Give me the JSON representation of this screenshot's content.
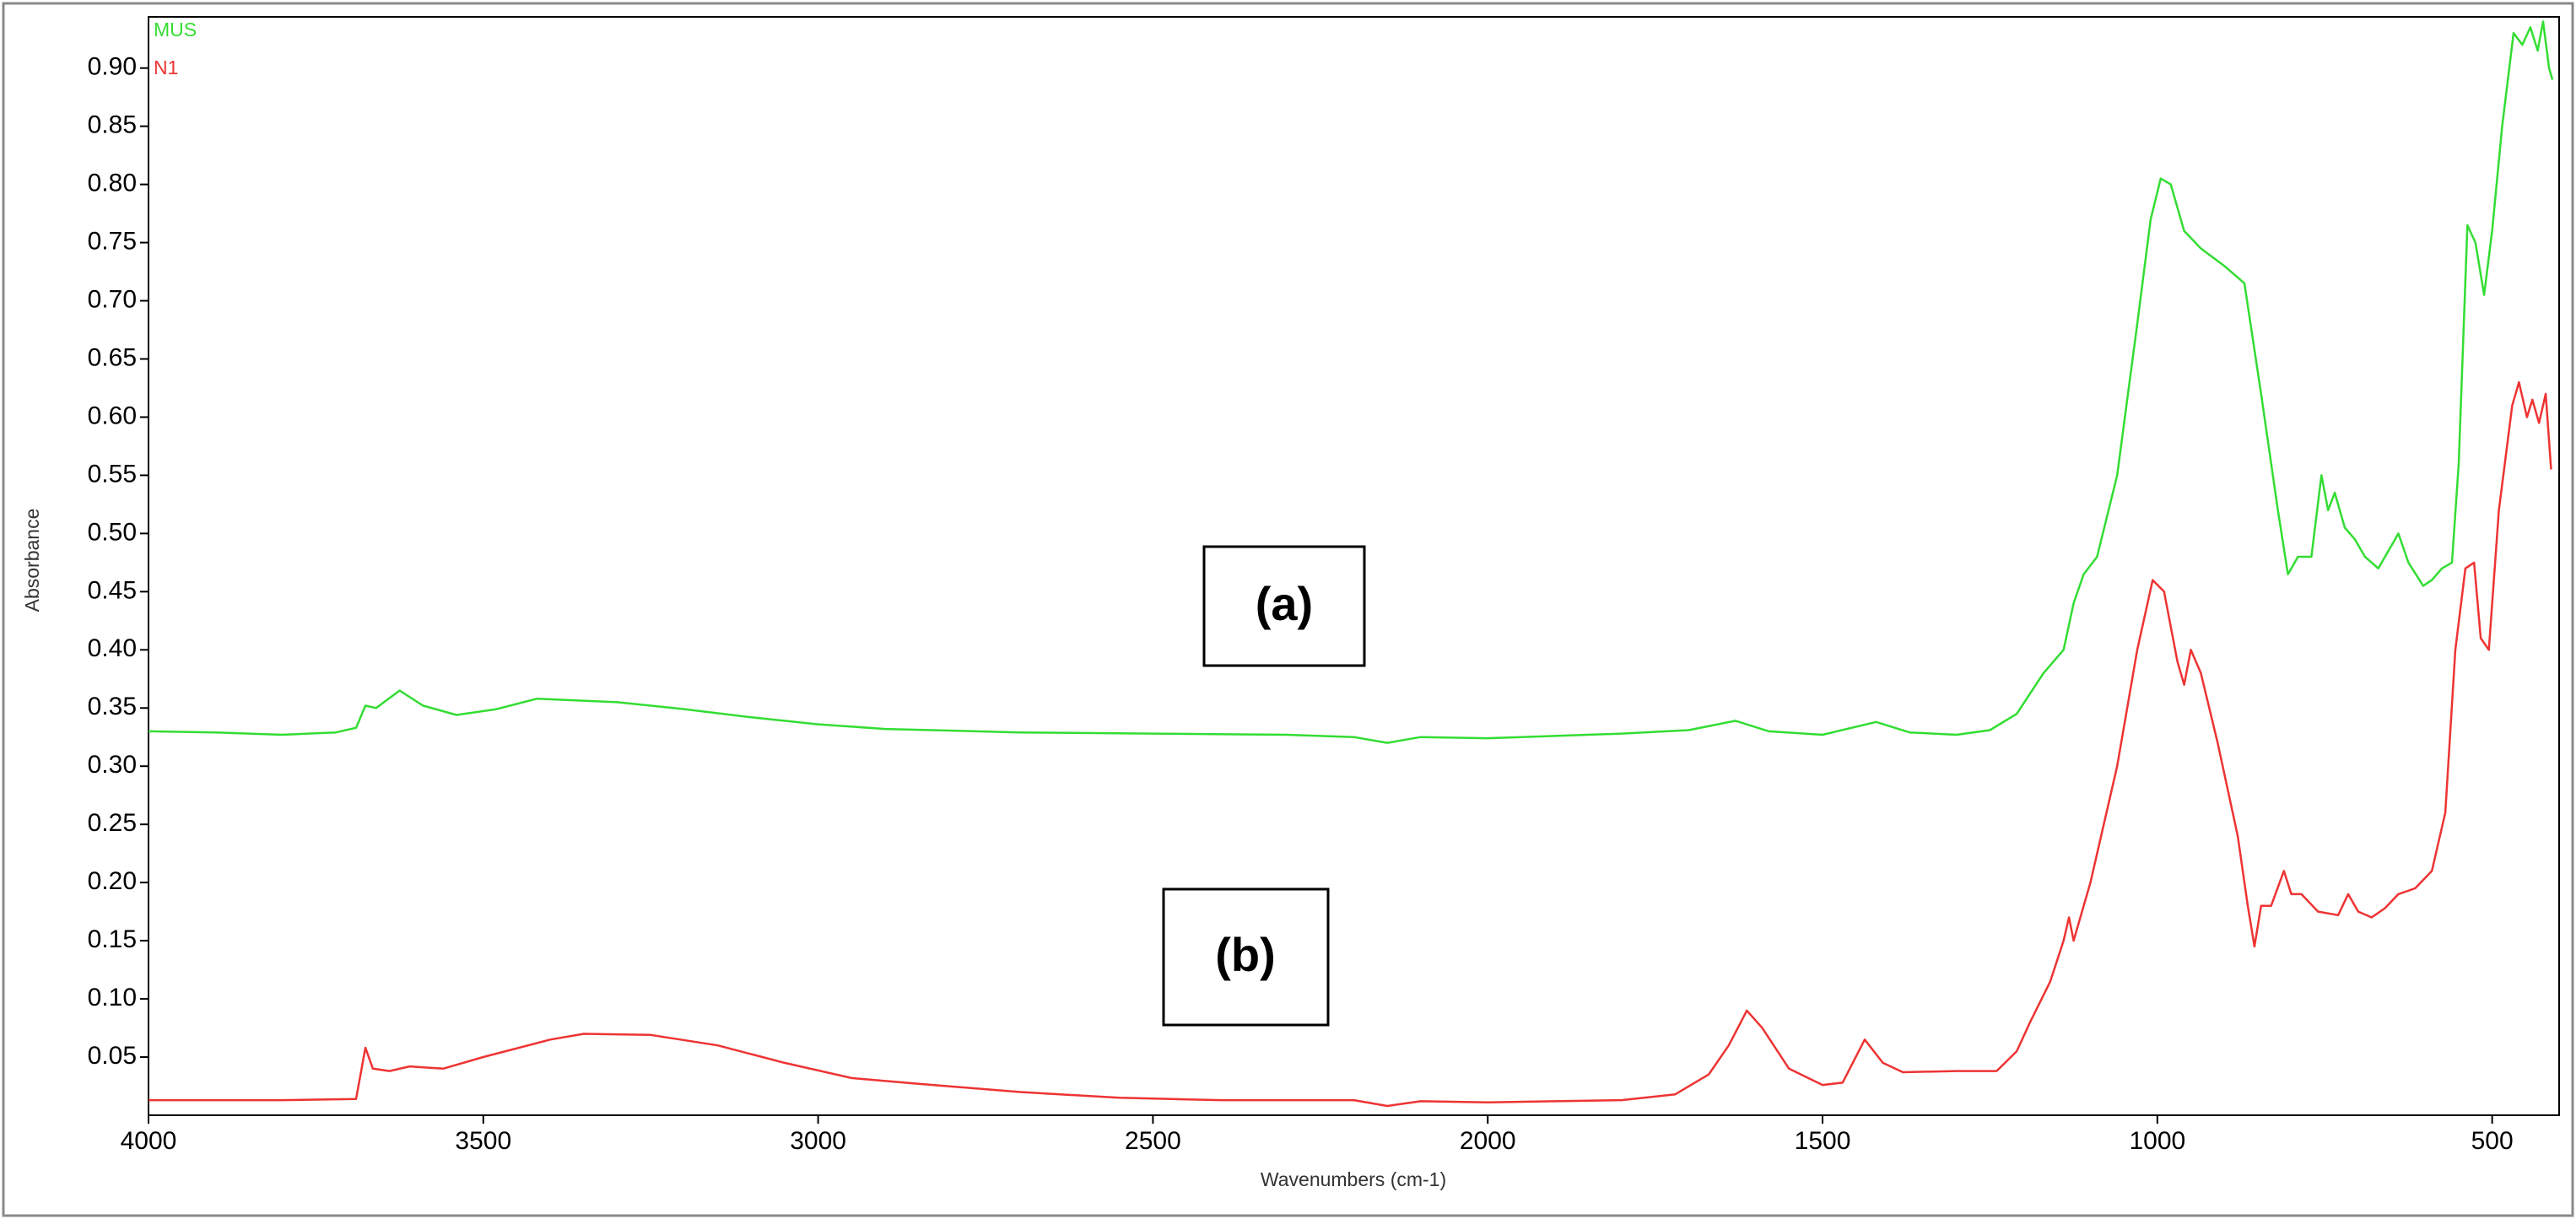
{
  "chart_data": {
    "type": "line",
    "xlabel": "Wavenumbers (cm-1)",
    "ylabel": "Absorbance",
    "xlim": [
      4000,
      400
    ],
    "ylim": [
      0,
      0.944
    ],
    "xticks": [
      4000,
      3500,
      3000,
      2500,
      2000,
      1500,
      1000,
      500
    ],
    "yticks": [
      0.05,
      {
        "value": 0.1,
        "label": "0.10"
      },
      0.15,
      {
        "value": 0.2,
        "label": "0.20"
      },
      0.25,
      {
        "value": 0.3,
        "label": "0.30"
      },
      0.35,
      {
        "value": 0.4,
        "label": "0.40"
      },
      0.45,
      {
        "value": 0.5,
        "label": "0.50"
      },
      0.55,
      {
        "value": 0.6,
        "label": "0.60"
      },
      0.65,
      {
        "value": 0.7,
        "label": "0.70"
      },
      0.75,
      {
        "value": 0.8,
        "label": "0.80"
      },
      0.85,
      {
        "value": 0.9,
        "label": "0.90"
      }
    ],
    "legend": "top-left",
    "annotations": [
      "(a)",
      "(b)"
    ],
    "series": [
      {
        "name": "MUS",
        "color": "#33dd33",
        "x": [
          4000,
          3900,
          3800,
          3720,
          3690,
          3676,
          3660,
          3625,
          3590,
          3540,
          3480,
          3420,
          3300,
          3200,
          3100,
          3000,
          2900,
          2700,
          2500,
          2300,
          2200,
          2150,
          2100,
          2000,
          1900,
          1800,
          1700,
          1630,
          1580,
          1500,
          1420,
          1370,
          1300,
          1250,
          1210,
          1170,
          1140,
          1125,
          1110,
          1090,
          1060,
          1030,
          1010,
          995,
          980,
          960,
          935,
          900,
          870,
          845,
          820,
          805,
          790,
          770,
          755,
          745,
          735,
          720,
          705,
          690,
          670,
          650,
          640,
          625,
          603,
          590,
          575,
          560,
          550,
          537,
          525,
          512,
          500,
          485,
          468,
          455,
          443,
          432,
          424,
          415,
          410
        ],
        "values": [
          0.33,
          0.329,
          0.327,
          0.329,
          0.333,
          0.352,
          0.35,
          0.365,
          0.352,
          0.344,
          0.349,
          0.358,
          0.355,
          0.349,
          0.342,
          0.336,
          0.332,
          0.329,
          0.328,
          0.327,
          0.325,
          0.32,
          0.325,
          0.324,
          0.326,
          0.328,
          0.331,
          0.339,
          0.33,
          0.327,
          0.338,
          0.329,
          0.327,
          0.331,
          0.345,
          0.38,
          0.4,
          0.44,
          0.465,
          0.48,
          0.55,
          0.68,
          0.77,
          0.805,
          0.8,
          0.76,
          0.745,
          0.73,
          0.715,
          0.62,
          0.52,
          0.465,
          0.48,
          0.48,
          0.55,
          0.52,
          0.535,
          0.505,
          0.495,
          0.48,
          0.47,
          0.49,
          0.5,
          0.475,
          0.455,
          0.46,
          0.47,
          0.475,
          0.56,
          0.765,
          0.75,
          0.705,
          0.76,
          0.85,
          0.93,
          0.92,
          0.935,
          0.915,
          0.94,
          0.9,
          0.89
        ]
      },
      {
        "name": "N1",
        "color": "#ee3333",
        "x": [
          4000,
          3800,
          3690,
          3676,
          3665,
          3640,
          3610,
          3560,
          3500,
          3400,
          3350,
          3250,
          3150,
          3050,
          2950,
          2850,
          2700,
          2550,
          2400,
          2200,
          2150,
          2100,
          2000,
          1900,
          1800,
          1720,
          1670,
          1640,
          1613,
          1590,
          1550,
          1500,
          1470,
          1437,
          1410,
          1380,
          1300,
          1240,
          1210,
          1190,
          1160,
          1140,
          1132,
          1125,
          1100,
          1060,
          1030,
          1007,
          990,
          970,
          960,
          950,
          935,
          910,
          880,
          865,
          855,
          845,
          830,
          811,
          800,
          785,
          760,
          730,
          715,
          700,
          680,
          660,
          640,
          615,
          590,
          570,
          555,
          540,
          527,
          517,
          505,
          490,
          470,
          460,
          448,
          440,
          430,
          420,
          412
        ],
        "values": [
          0.013,
          0.013,
          0.014,
          0.058,
          0.04,
          0.038,
          0.042,
          0.04,
          0.05,
          0.065,
          0.07,
          0.069,
          0.06,
          0.045,
          0.032,
          0.027,
          0.02,
          0.015,
          0.013,
          0.013,
          0.008,
          0.012,
          0.011,
          0.012,
          0.013,
          0.018,
          0.035,
          0.06,
          0.09,
          0.075,
          0.04,
          0.026,
          0.028,
          0.065,
          0.045,
          0.037,
          0.038,
          0.038,
          0.055,
          0.08,
          0.115,
          0.15,
          0.17,
          0.15,
          0.2,
          0.3,
          0.4,
          0.46,
          0.45,
          0.39,
          0.37,
          0.4,
          0.38,
          0.32,
          0.24,
          0.18,
          0.145,
          0.18,
          0.18,
          0.21,
          0.19,
          0.19,
          0.175,
          0.172,
          0.19,
          0.175,
          0.17,
          0.178,
          0.19,
          0.195,
          0.21,
          0.26,
          0.4,
          0.47,
          0.475,
          0.41,
          0.4,
          0.52,
          0.61,
          0.63,
          0.6,
          0.615,
          0.595,
          0.62,
          0.555
        ]
      }
    ]
  }
}
